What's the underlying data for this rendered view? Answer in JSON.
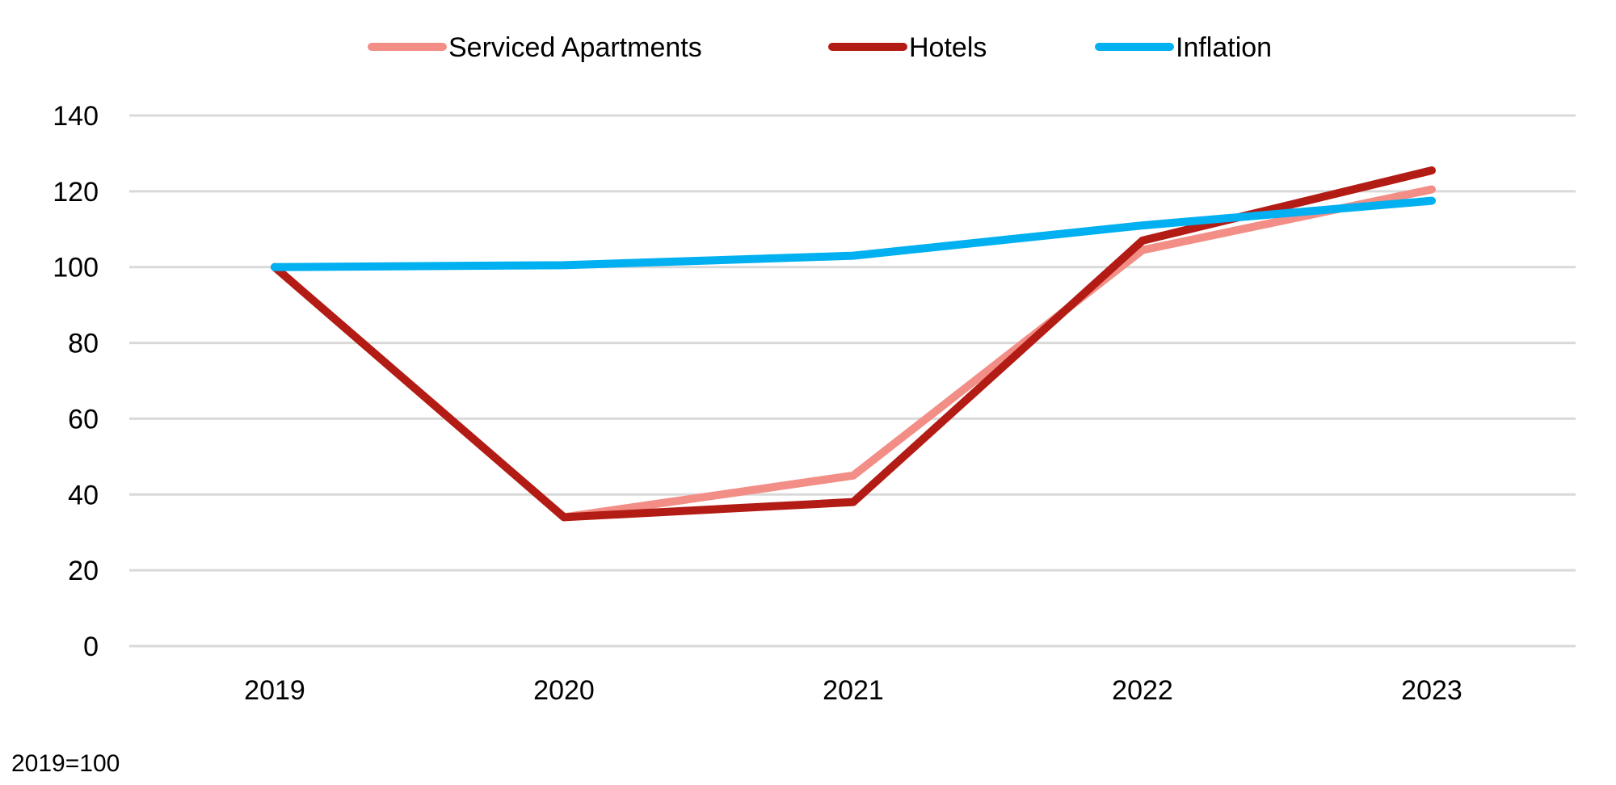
{
  "chart_data": {
    "type": "line",
    "title": "",
    "xlabel": "",
    "ylabel": "",
    "note": "2019=100",
    "categories": [
      "2019",
      "2020",
      "2021",
      "2022",
      "2023"
    ],
    "ylim": [
      0,
      140
    ],
    "yticks": [
      0,
      20,
      40,
      60,
      80,
      100,
      120,
      140
    ],
    "grid": true,
    "legend_position": "top-center",
    "series": [
      {
        "name": "Serviced Apartments",
        "color": "#F28E86",
        "values": [
          100,
          34,
          45,
          104.5,
          120.5
        ]
      },
      {
        "name": "Hotels",
        "color": "#B31B15",
        "values": [
          100,
          34,
          38,
          107,
          125.5
        ]
      },
      {
        "name": "Inflation",
        "color": "#00B0F0",
        "values": [
          100,
          100.5,
          103,
          111,
          117.5
        ]
      }
    ],
    "colors": {
      "grid": "#D9D9D9",
      "text": "#000000"
    }
  }
}
